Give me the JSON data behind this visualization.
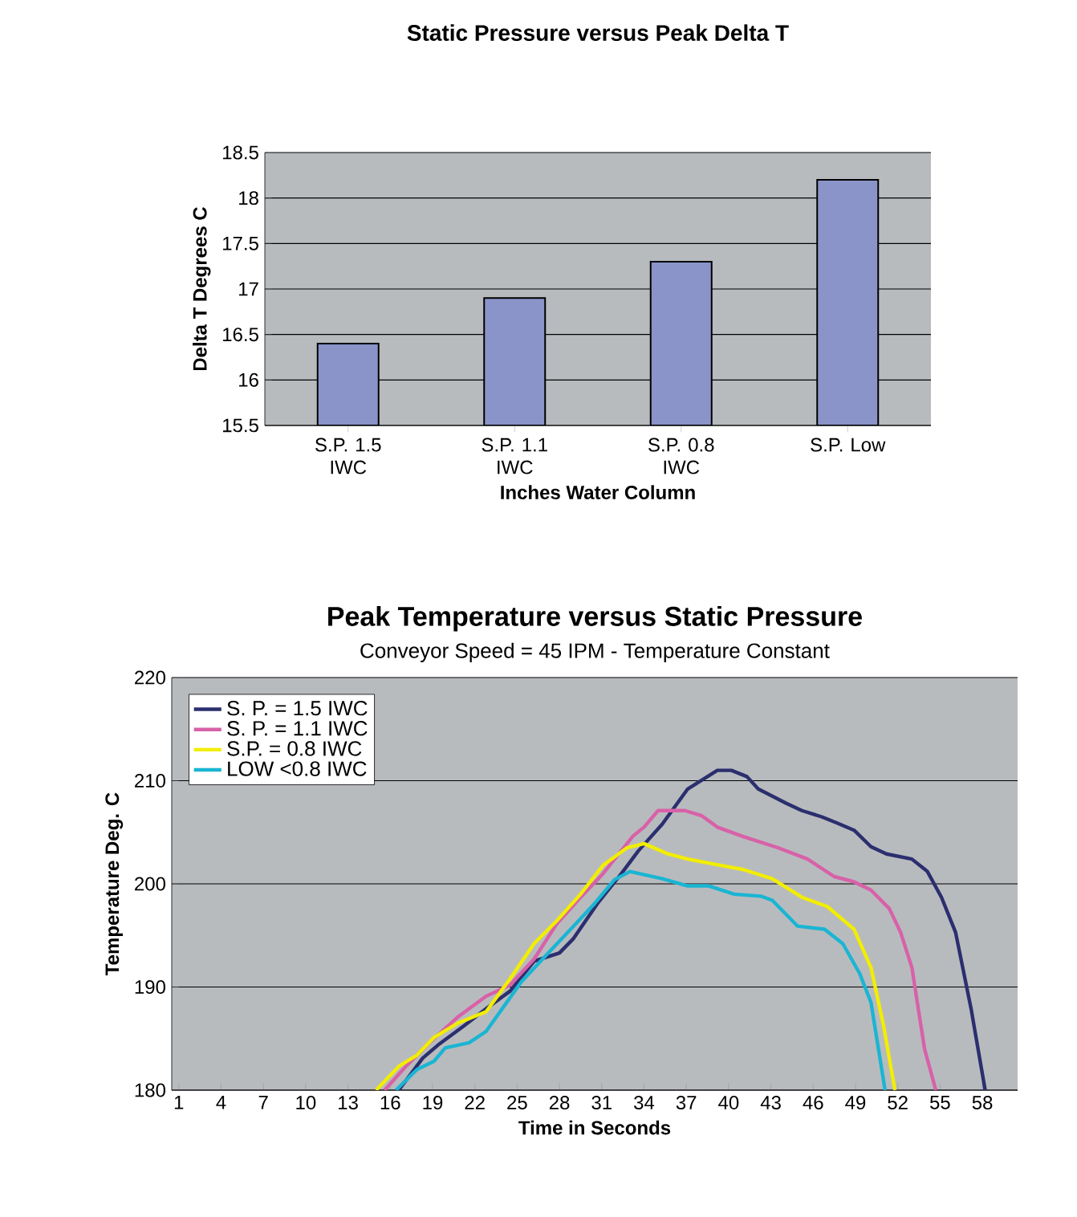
{
  "chart_data": [
    {
      "type": "bar",
      "title": "Static Pressure versus Peak Delta T",
      "xlabel": "Inches Water Column",
      "ylabel": "Delta T Degrees C",
      "categories": [
        "S.P. 1.5 IWC",
        "S.P. 1.1 IWC",
        "S.P. 0.8 IWC",
        "S.P. Low"
      ],
      "values": [
        16.4,
        16.9,
        17.3,
        18.2
      ],
      "color": "#8a94c9",
      "ylim": [
        15.5,
        18.5
      ],
      "yticks": [
        15.5,
        16,
        16.5,
        17,
        17.5,
        18,
        18.5
      ],
      "grid": "y"
    },
    {
      "type": "line",
      "title": "Peak Temperature versus Static Pressure",
      "subtitle": "Conveyor Speed = 45 IPM - Temperature Constant",
      "xlabel": "Time in Seconds",
      "ylabel": "Temperature  Deg. C",
      "xlim": [
        0.5,
        60.5
      ],
      "xticks": [
        1,
        4,
        7,
        10,
        13,
        16,
        19,
        22,
        25,
        28,
        31,
        34,
        37,
        40,
        43,
        46,
        49,
        52,
        55,
        58
      ],
      "ylim": [
        180,
        220
      ],
      "yticks": [
        180,
        190,
        200,
        210,
        220
      ],
      "grid": "y",
      "legend": "top left",
      "marker": "none",
      "line_style": "solid",
      "series": [
        {
          "name": "S. P. = 1.5 IWC",
          "color": "#2b2f6e",
          "x": [
            16.6,
            18.3,
            19.5,
            21.2,
            22.8,
            24.5,
            26.2,
            28.0,
            29.0,
            30.7,
            32.4,
            33.6,
            35.3,
            37.1,
            39.2,
            40.2,
            41.3,
            42.1,
            44.1,
            45.2,
            46.6,
            47.7,
            48.9,
            50.1,
            51.2,
            53.0,
            54.1,
            55.1,
            56.1,
            57.2,
            58.2
          ],
          "values": [
            180,
            183.1,
            184.5,
            186.2,
            187.9,
            189.6,
            192.5,
            193.3,
            194.7,
            198.1,
            201.0,
            203.2,
            205.8,
            209.2,
            211.0,
            211.0,
            210.4,
            209.2,
            207.8,
            207.1,
            206.5,
            205.9,
            205.2,
            203.6,
            202.9,
            202.4,
            201.2,
            198.7,
            195.3,
            187.9,
            180
          ]
        },
        {
          "name": "S. P. = 1.1 IWC",
          "color": "#d861a8",
          "x": [
            15.6,
            17.1,
            18.7,
            20.8,
            22.8,
            24.5,
            26.2,
            27.8,
            29.5,
            31.1,
            33.2,
            34.0,
            35.0,
            36.9,
            38.1,
            39.2,
            41.0,
            43.5,
            45.6,
            47.5,
            48.9,
            50.1,
            51.4,
            52.2,
            53.0,
            53.9,
            54.7
          ],
          "values": [
            180,
            182.3,
            184.5,
            187.1,
            189.1,
            190.2,
            192.7,
            196.1,
            198.7,
            201.0,
            204.6,
            205.5,
            207.1,
            207.1,
            206.6,
            205.5,
            204.6,
            203.5,
            202.4,
            200.7,
            200.2,
            199.4,
            197.6,
            195.3,
            191.9,
            184.0,
            180
          ]
        },
        {
          "name": "S.P. = 0.8 IWC",
          "color": "#f2ee00",
          "x": [
            15.0,
            16.6,
            17.9,
            19.1,
            20.8,
            22.8,
            24.5,
            26.2,
            27.8,
            29.5,
            31.1,
            32.8,
            34.0,
            35.7,
            37.1,
            39.4,
            41.0,
            43.1,
            45.2,
            47.0,
            48.9,
            50.1,
            51.0,
            51.8
          ],
          "values": [
            180,
            182.3,
            183.4,
            185.1,
            186.5,
            187.6,
            190.8,
            194.2,
            196.4,
            199.0,
            201.8,
            203.5,
            203.9,
            202.9,
            202.4,
            201.8,
            201.4,
            200.5,
            198.7,
            197.8,
            195.6,
            191.9,
            186.2,
            180
          ]
        },
        {
          "name": "LOW <0.8 IWC",
          "color": "#1ab5d3",
          "x": [
            16.4,
            17.9,
            19.1,
            19.9,
            21.6,
            22.8,
            24.1,
            25.3,
            27.0,
            29.0,
            30.5,
            31.9,
            33.0,
            35.3,
            37.1,
            38.6,
            40.4,
            42.3,
            43.1,
            44.9,
            46.8,
            48.1,
            49.3,
            50.1,
            51.1
          ],
          "values": [
            180,
            182.0,
            182.8,
            184.1,
            184.6,
            185.7,
            188.2,
            190.5,
            193.0,
            195.9,
            198.1,
            200.4,
            201.2,
            200.5,
            199.8,
            199.8,
            199.0,
            198.8,
            198.4,
            195.9,
            195.6,
            194.2,
            191.3,
            188.5,
            180
          ]
        }
      ]
    }
  ]
}
